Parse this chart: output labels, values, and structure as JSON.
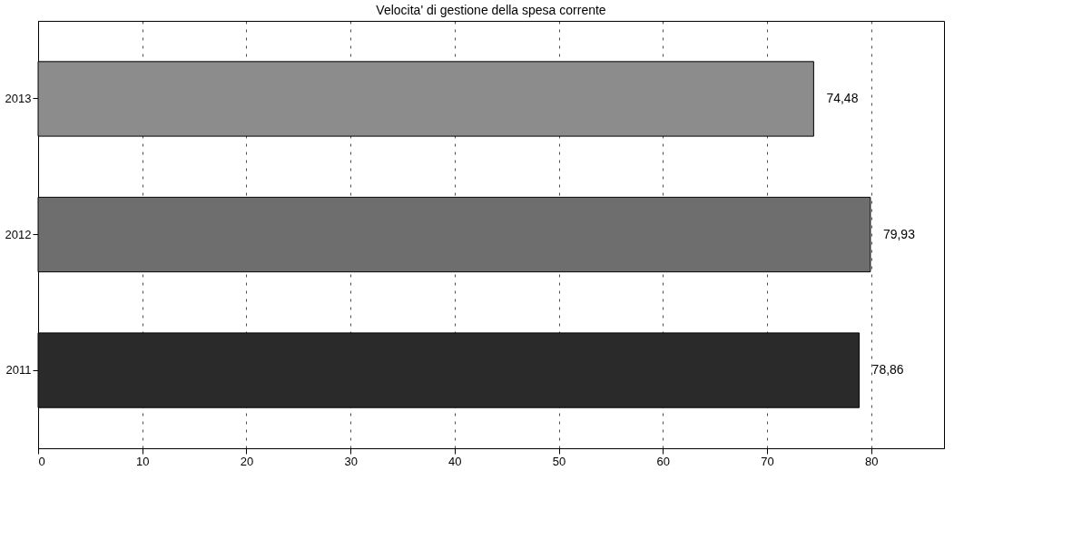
{
  "chart_data": {
    "type": "bar",
    "orientation": "horizontal",
    "title": "Velocita' di gestione della spesa corrente",
    "categories": [
      "2013",
      "2012",
      "2011"
    ],
    "values": [
      74.48,
      79.93,
      78.86
    ],
    "colors": [
      "#8c8c8c",
      "#6e6e6e",
      "#2a2a2a"
    ],
    "value_labels": [
      "74,48",
      "79,93",
      "78,86"
    ],
    "xlim": [
      0,
      87
    ],
    "xticks": [
      0,
      10,
      20,
      30,
      40,
      50,
      60,
      70,
      80
    ],
    "grid": "x"
  }
}
